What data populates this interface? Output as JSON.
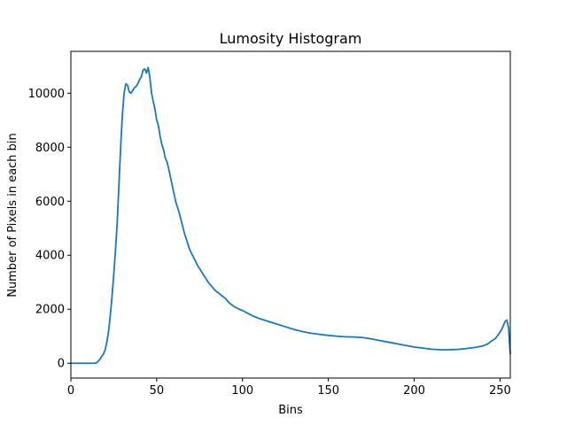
{
  "chart_data": {
    "type": "line",
    "title": "Lumosity Histogram",
    "xlabel": "Bins",
    "ylabel": "Number of Pixels in each bin",
    "xlim": [
      0,
      256
    ],
    "ylim": [
      -550,
      11550
    ],
    "xticks": [
      0,
      50,
      100,
      150,
      200,
      250
    ],
    "yticks": [
      0,
      2000,
      4000,
      6000,
      8000,
      10000
    ],
    "grid": false,
    "legend": "none",
    "colors": {
      "line": "#1f77b4"
    },
    "series": [
      {
        "points": [
          [
            0,
            0
          ],
          [
            5,
            0
          ],
          [
            10,
            0
          ],
          [
            14,
            0
          ],
          [
            15,
            20
          ],
          [
            16,
            80
          ],
          [
            17,
            150
          ],
          [
            18,
            250
          ],
          [
            19,
            350
          ],
          [
            20,
            500
          ],
          [
            21,
            800
          ],
          [
            22,
            1200
          ],
          [
            23,
            1800
          ],
          [
            24,
            2500
          ],
          [
            25,
            3300
          ],
          [
            26,
            4200
          ],
          [
            27,
            5200
          ],
          [
            28,
            6600
          ],
          [
            29,
            8000
          ],
          [
            30,
            9200
          ],
          [
            31,
            10000
          ],
          [
            32,
            10350
          ],
          [
            33,
            10300
          ],
          [
            34,
            10050
          ],
          [
            35,
            10000
          ],
          [
            36,
            10100
          ],
          [
            37,
            10200
          ],
          [
            38,
            10250
          ],
          [
            39,
            10350
          ],
          [
            40,
            10500
          ],
          [
            41,
            10600
          ],
          [
            42,
            10850
          ],
          [
            43,
            10900
          ],
          [
            44,
            10750
          ],
          [
            45,
            10950
          ],
          [
            46,
            10600
          ],
          [
            47,
            10000
          ],
          [
            48,
            9700
          ],
          [
            49,
            9400
          ],
          [
            50,
            9000
          ],
          [
            51,
            8800
          ],
          [
            52,
            8400
          ],
          [
            53,
            8100
          ],
          [
            54,
            7900
          ],
          [
            55,
            7600
          ],
          [
            56,
            7450
          ],
          [
            57,
            7200
          ],
          [
            58,
            6900
          ],
          [
            59,
            6600
          ],
          [
            60,
            6300
          ],
          [
            61,
            6000
          ],
          [
            62,
            5800
          ],
          [
            63,
            5600
          ],
          [
            64,
            5350
          ],
          [
            65,
            5100
          ],
          [
            66,
            4850
          ],
          [
            67,
            4650
          ],
          [
            68,
            4450
          ],
          [
            69,
            4250
          ],
          [
            70,
            4100
          ],
          [
            72,
            3850
          ],
          [
            74,
            3600
          ],
          [
            76,
            3400
          ],
          [
            78,
            3200
          ],
          [
            80,
            3000
          ],
          [
            82,
            2850
          ],
          [
            84,
            2700
          ],
          [
            86,
            2600
          ],
          [
            88,
            2500
          ],
          [
            90,
            2400
          ],
          [
            92,
            2250
          ],
          [
            95,
            2100
          ],
          [
            98,
            2000
          ],
          [
            100,
            1950
          ],
          [
            103,
            1850
          ],
          [
            106,
            1750
          ],
          [
            110,
            1650
          ],
          [
            115,
            1550
          ],
          [
            120,
            1450
          ],
          [
            125,
            1350
          ],
          [
            130,
            1250
          ],
          [
            135,
            1170
          ],
          [
            140,
            1110
          ],
          [
            145,
            1070
          ],
          [
            150,
            1030
          ],
          [
            155,
            1000
          ],
          [
            160,
            980
          ],
          [
            165,
            970
          ],
          [
            170,
            950
          ],
          [
            175,
            900
          ],
          [
            180,
            840
          ],
          [
            185,
            780
          ],
          [
            190,
            720
          ],
          [
            195,
            660
          ],
          [
            200,
            600
          ],
          [
            205,
            560
          ],
          [
            210,
            520
          ],
          [
            215,
            500
          ],
          [
            220,
            500
          ],
          [
            225,
            510
          ],
          [
            230,
            540
          ],
          [
            235,
            580
          ],
          [
            240,
            640
          ],
          [
            243,
            720
          ],
          [
            245,
            820
          ],
          [
            247,
            900
          ],
          [
            249,
            1050
          ],
          [
            250,
            1150
          ],
          [
            251,
            1250
          ],
          [
            252,
            1400
          ],
          [
            253,
            1550
          ],
          [
            254,
            1600
          ],
          [
            255,
            1300
          ],
          [
            256,
            330
          ]
        ]
      }
    ]
  }
}
